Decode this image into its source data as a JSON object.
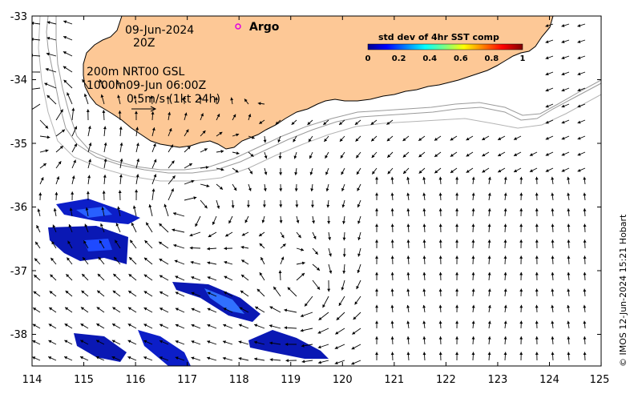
{
  "map": {
    "date": "09-Jun-2024",
    "time": "20Z",
    "line_200m": "200m  NRT00 GSL",
    "line_1000m": "1000m09-Jun 06:00Z",
    "vector_scale": "0.5m/s (1kt 24h)",
    "argo_label": "Argo",
    "credit": "© IMOS 12-Jun-2024 15:21 Hobart",
    "x_ticks": [
      "114",
      "115",
      "116",
      "117",
      "118",
      "119",
      "120",
      "121",
      "122",
      "123",
      "124",
      "125"
    ],
    "y_ticks": [
      "-33",
      "-34",
      "-35",
      "-36",
      "-37",
      "-38"
    ]
  },
  "colorbar": {
    "title": "std dev of 4hr SST comp",
    "ticks": [
      "0",
      "0.2",
      "0.4",
      "0.6",
      "0.8",
      "1"
    ]
  },
  "colors": {
    "land": "#fdc896",
    "argo": "#e000e0",
    "contour": "#9a9a9a"
  }
}
